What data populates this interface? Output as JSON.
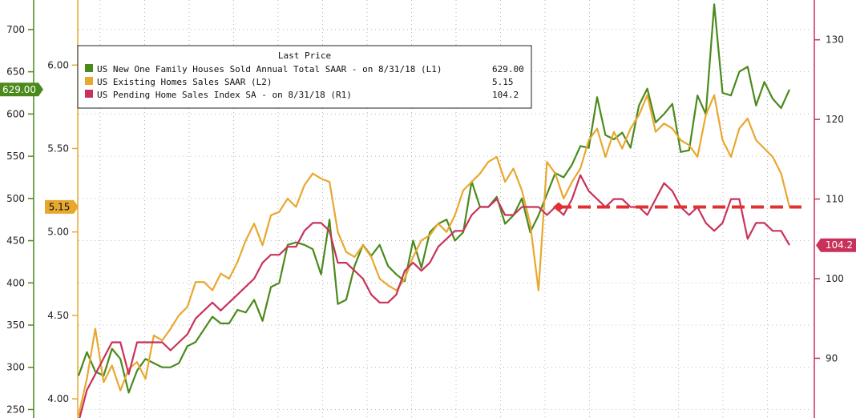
{
  "chart_data": {
    "type": "line",
    "legend": {
      "title": "Last Price",
      "placement": "top-left",
      "entries": [
        {
          "label": "US New One Family Houses Sold Annual Total SAAR -  on 8/31/18  (L1)",
          "value": "629.00",
          "color": "#4a8a1c"
        },
        {
          "label": "US Existing Homes Sales SAAR  (L2)",
          "value": "5.15",
          "color": "#e8a830"
        },
        {
          "label": "US Pending Home Sales Index SA -  on 8/31/18  (R1)",
          "value": "104.2",
          "color": "#c8325a"
        }
      ]
    },
    "axes": {
      "l1": {
        "ticks": [
          "250",
          "300",
          "350",
          "400",
          "450",
          "500",
          "550",
          "600",
          "650",
          "700"
        ],
        "range": [
          240,
          735
        ]
      },
      "l2": {
        "ticks": [
          "4.00",
          "4.50",
          "5.00",
          "5.50",
          "6.00"
        ],
        "range": [
          3.885,
          6.39
        ]
      },
      "r1": {
        "ticks": [
          "90",
          "100",
          "110",
          "120",
          "130"
        ],
        "range": [
          82.5,
          135
        ]
      }
    },
    "grid": true,
    "last_value_tags": {
      "l1": "629.00",
      "l2": "5.15",
      "r1": "104.2"
    },
    "series": [
      {
        "name": "US New One Family Houses Sold Annual Total SAAR",
        "axis": "l1",
        "color": "#4a8a1c",
        "values": [
          290,
          318,
          295,
          290,
          322,
          310,
          270,
          296,
          310,
          305,
          300,
          300,
          305,
          325,
          330,
          345,
          360,
          352,
          352,
          368,
          365,
          380,
          355,
          395,
          400,
          445,
          448,
          445,
          440,
          410,
          475,
          375,
          380,
          420,
          445,
          432,
          445,
          420,
          410,
          402,
          450,
          418,
          460,
          470,
          475,
          450,
          460,
          520,
          490,
          490,
          502,
          470,
          480,
          500,
          460,
          480,
          505,
          530,
          525,
          540,
          562,
          560,
          620,
          575,
          570,
          578,
          560,
          610,
          630,
          590,
          600,
          612,
          555,
          557,
          622,
          600,
          730,
          625,
          622,
          650,
          656,
          610,
          638,
          618,
          607,
          629
        ]
      },
      {
        "name": "US Existing Homes Sales SAAR",
        "axis": "l2",
        "color": "#e8a830",
        "values": [
          3.9,
          4.12,
          4.42,
          4.1,
          4.2,
          4.05,
          4.18,
          4.22,
          4.12,
          4.38,
          4.35,
          4.42,
          4.5,
          4.55,
          4.7,
          4.7,
          4.65,
          4.75,
          4.72,
          4.82,
          4.95,
          5.05,
          4.92,
          5.1,
          5.12,
          5.2,
          5.15,
          5.28,
          5.35,
          5.32,
          5.3,
          5.0,
          4.88,
          4.85,
          4.92,
          4.85,
          4.72,
          4.68,
          4.65,
          4.72,
          4.85,
          4.95,
          4.98,
          5.05,
          5.0,
          5.1,
          5.25,
          5.3,
          5.35,
          5.42,
          5.45,
          5.3,
          5.38,
          5.25,
          5.05,
          4.65,
          5.42,
          5.35,
          5.2,
          5.3,
          5.38,
          5.55,
          5.62,
          5.45,
          5.6,
          5.5,
          5.62,
          5.7,
          5.82,
          5.6,
          5.65,
          5.62,
          5.55,
          5.52,
          5.45,
          5.7,
          5.82,
          5.55,
          5.45,
          5.62,
          5.68,
          5.55,
          5.5,
          5.45,
          5.35,
          5.15
        ]
      },
      {
        "name": "US Pending Home Sales Index SA",
        "axis": "r1",
        "color": "#c8325a",
        "values": [
          82,
          86,
          88,
          90,
          92,
          92,
          88,
          92,
          92,
          92,
          92,
          91,
          92,
          93,
          95,
          96,
          97,
          96,
          97,
          98,
          99,
          100,
          102,
          103,
          103,
          104,
          104,
          106,
          107,
          107,
          106,
          102,
          102,
          101,
          100,
          98,
          97,
          97,
          98,
          101,
          102,
          101,
          102,
          104,
          105,
          106,
          106,
          108,
          109,
          109,
          110,
          108,
          108,
          109,
          109,
          109,
          108,
          109,
          108,
          110,
          113,
          111,
          110,
          109,
          110,
          110,
          109,
          109,
          108,
          110,
          112,
          111,
          109,
          108,
          109,
          107,
          106,
          107,
          110,
          110,
          105,
          107,
          107,
          106,
          106,
          104.2
        ]
      }
    ],
    "forecast_line": {
      "axis": "r1",
      "color": "#e03030",
      "value": 109
    }
  }
}
